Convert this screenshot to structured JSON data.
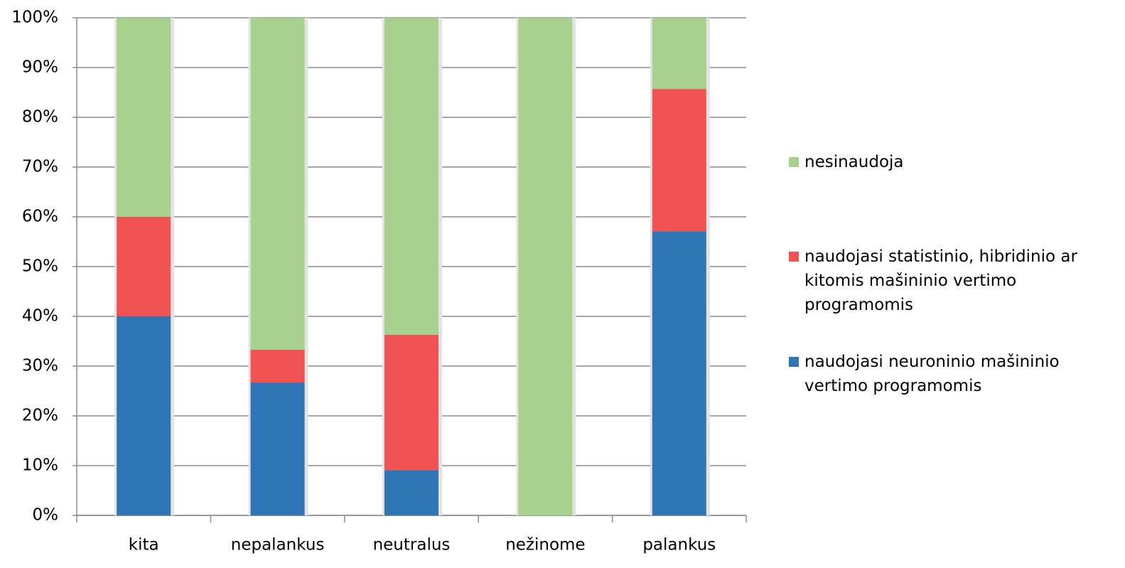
{
  "chart_data": {
    "type": "stacked-bar",
    "categories": [
      "kita",
      "nepalankus",
      "neutralus",
      "nežinome",
      "palankus"
    ],
    "series": [
      {
        "name": "naudojasi neuroninio mašininio vertimo programomis",
        "color": "#2e75b6",
        "values": [
          40,
          26.7,
          9.1,
          0,
          57.1
        ]
      },
      {
        "name": "naudojasi statistinio, hibridinio ar kitomis mašininio vertimo programomis",
        "color": "#f05252",
        "values": [
          20,
          6.6,
          27.2,
          0,
          28.6
        ]
      },
      {
        "name": "nesinaudoja",
        "color": "#a9d18e",
        "values": [
          40,
          66.7,
          63.7,
          100,
          14.3
        ]
      }
    ],
    "ylim": [
      0,
      100
    ],
    "yticks": [
      {
        "value": 0,
        "label": "0%"
      },
      {
        "value": 10,
        "label": "10%"
      },
      {
        "value": 20,
        "label": "20%"
      },
      {
        "value": 30,
        "label": "30%"
      },
      {
        "value": 40,
        "label": "40%"
      },
      {
        "value": 50,
        "label": "50%"
      },
      {
        "value": 60,
        "label": "60%"
      },
      {
        "value": 70,
        "label": "70%"
      },
      {
        "value": 80,
        "label": "80%"
      },
      {
        "value": 90,
        "label": "90%"
      },
      {
        "value": 100,
        "label": "100%"
      }
    ],
    "grid": true,
    "legend": "right"
  }
}
